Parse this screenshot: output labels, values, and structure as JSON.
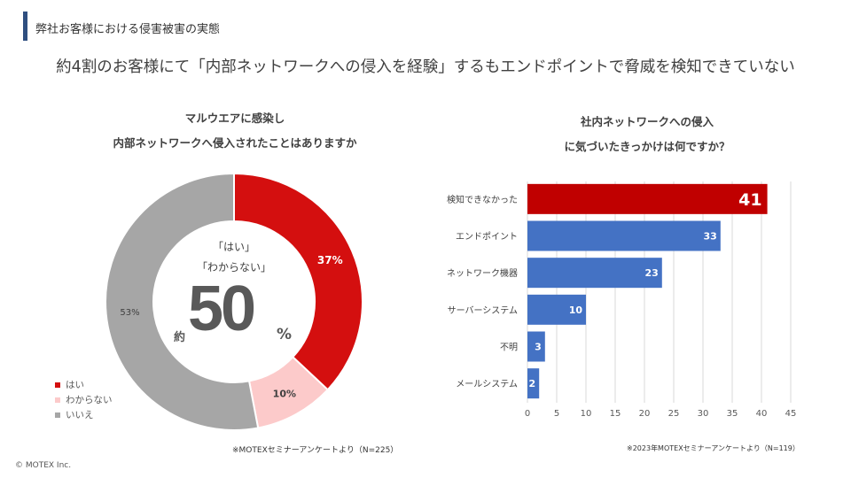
{
  "header": {
    "section_title": "弊社お客様における侵害被害の実態",
    "headline": "約4割のお客様にて「内部ネットワークへの侵入を経験」するもエンドポイントで脅威を検知できていない"
  },
  "donut": {
    "title_line1": "マルウエアに感染し",
    "title_line2": "内部ネットワークへ侵入されたことはありますか",
    "center_line1": "「はい」",
    "center_line2": "「わからない」",
    "center_prefix": "約",
    "center_value": "50",
    "center_suffix": "%",
    "source": "※MOTEXセミナーアンケートより（N=225）"
  },
  "bar": {
    "title_line1": "社内ネットワークへの侵入",
    "title_line2": "に気づいたきっかけは何ですか？",
    "source": "※2023年MOTEXセミナーアンケートより（N=119）"
  },
  "chart_data": [
    {
      "type": "pie",
      "title": "マルウエアに感染し 内部ネットワークへ侵入されたことはありますか",
      "categories": [
        "はい",
        "わからない",
        "いいえ"
      ],
      "values": [
        37,
        10,
        53
      ],
      "labels": [
        "37%",
        "10%",
        "53%"
      ],
      "colors": [
        "#d40f0f",
        "#fccaca",
        "#a6a6a6"
      ],
      "legend": "bottom-left",
      "donut": true
    },
    {
      "type": "bar",
      "orientation": "horizontal",
      "title": "社内ネットワークへの侵入 に気づいたきっかけは何ですか？",
      "categories": [
        "検知できなかった",
        "エンドポイント",
        "ネットワーク機器",
        "サーバーシステム",
        "不明",
        "メールシステム"
      ],
      "values": [
        41,
        33,
        23,
        10,
        3,
        2
      ],
      "colors": [
        "#c00000",
        "#4472c4",
        "#4472c4",
        "#4472c4",
        "#4472c4",
        "#4472c4"
      ],
      "xlim": [
        0,
        45
      ],
      "xticks": [
        0,
        5,
        10,
        15,
        20,
        25,
        30,
        35,
        40,
        45
      ],
      "grid": true,
      "xlabel": "",
      "ylabel": ""
    }
  ],
  "footer": {
    "copyright": "© MOTEX Inc."
  }
}
